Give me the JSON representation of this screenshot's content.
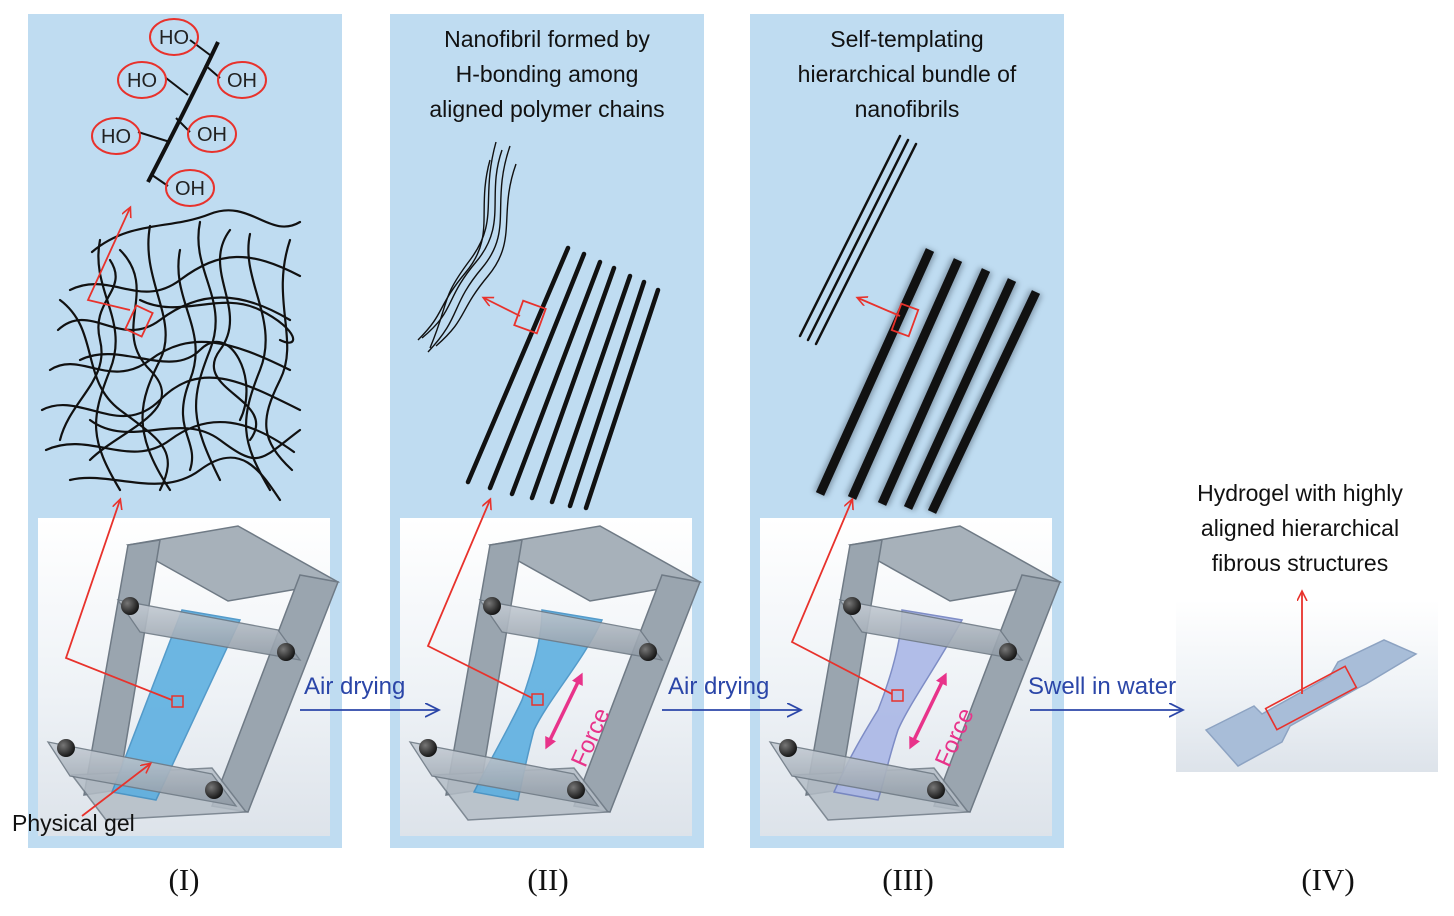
{
  "stages": [
    {
      "numeral": "(I)",
      "caption": "",
      "bottom_label": "Physical gel"
    },
    {
      "numeral": "(II)",
      "caption": "Nanofibril formed by\nH-bonding among\naligned polymer chains",
      "force_label": "Force"
    },
    {
      "numeral": "(III)",
      "caption": "Self-templating\nhierarchical bundle of\nnanofibrils",
      "force_label": "Force"
    },
    {
      "numeral": "(IV)",
      "caption": "Hydrogel with highly\naligned hierarchical\nfibrous structures"
    }
  ],
  "transitions": [
    "Air drying",
    "Air drying",
    "Swell in water"
  ],
  "hydroxyl_groups": [
    "HO",
    "HO",
    "OH",
    "HO",
    "OH",
    "OH"
  ],
  "colors": {
    "panel": "#bfdcf1",
    "highlight": "#e8322c",
    "arrow": "#2b46a8",
    "force": "#e8338a",
    "gel_blue": "#5aaee0",
    "gel_lavender": "#a9b6e6",
    "frame": "#8f9aa4"
  }
}
